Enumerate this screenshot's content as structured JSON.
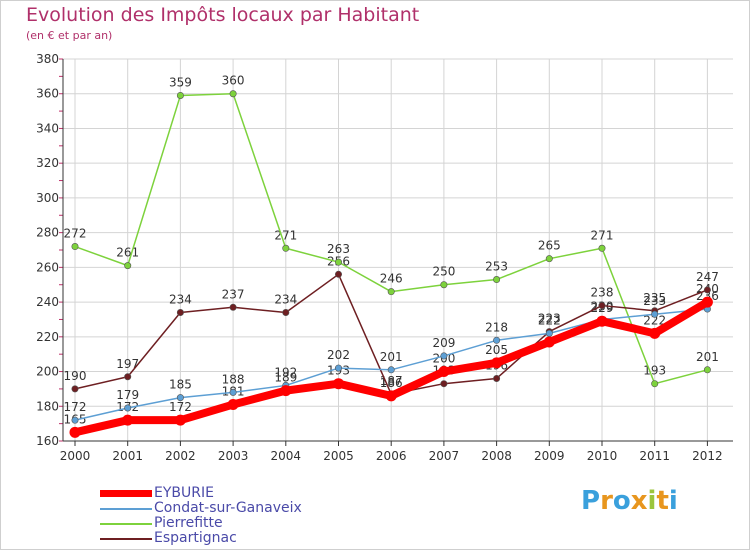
{
  "chart_data": {
    "type": "line",
    "title": "Evolution des Impôts locaux par Habitant",
    "subtitle": "(en € et par an)",
    "xlabel": "",
    "ylabel": "",
    "categories": [
      "2000",
      "2001",
      "2002",
      "2003",
      "2004",
      "2005",
      "2006",
      "2007",
      "2008",
      "2009",
      "2010",
      "2011",
      "2012"
    ],
    "ylim": [
      160,
      380
    ],
    "yticks": [
      160,
      180,
      200,
      220,
      240,
      260,
      280,
      300,
      320,
      340,
      360,
      380
    ],
    "grid": true,
    "series": [
      {
        "name": "EYBURIE",
        "color": "#ff0000",
        "values": [
          165,
          172,
          172,
          181,
          189,
          193,
          186,
          200,
          205,
          217,
          229,
          222,
          240
        ],
        "labels": [
          "165",
          "172",
          "172",
          "181",
          "189",
          "193",
          "186",
          "200",
          "205",
          "",
          "229",
          "222",
          "240"
        ]
      },
      {
        "name": "Condat-sur-Ganaveix",
        "color": "#5d9fd4",
        "values": [
          172,
          179,
          185,
          188,
          192,
          202,
          201,
          209,
          218,
          222,
          230,
          233,
          236
        ],
        "labels": [
          "172",
          "179",
          "185",
          "188",
          "192",
          "202",
          "201",
          "209",
          "218",
          "222",
          "230",
          "233",
          "236"
        ]
      },
      {
        "name": "Pierrefitte",
        "color": "#7dd23c",
        "values": [
          272,
          261,
          359,
          360,
          271,
          263,
          246,
          250,
          253,
          265,
          271,
          193,
          201
        ],
        "labels": [
          "272",
          "261",
          "359",
          "360",
          "271",
          "263",
          "246",
          "250",
          "253",
          "265",
          "271",
          "193",
          "201"
        ]
      },
      {
        "name": "Espartignac",
        "color": "#6e1f22",
        "values": [
          190,
          197,
          234,
          237,
          234,
          256,
          187,
          193,
          196,
          223,
          238,
          235,
          247
        ],
        "labels": [
          "190",
          "197",
          "234",
          "237",
          "234",
          "256",
          "187",
          "193",
          "196",
          "223",
          "238",
          "235",
          "247"
        ]
      }
    ]
  },
  "legend": {
    "items": [
      {
        "name": "EYBURIE"
      },
      {
        "name": "Condat-sur-Ganaveix"
      },
      {
        "name": "Pierrefitte"
      },
      {
        "name": "Espartignac"
      }
    ]
  },
  "logo": {
    "letters": [
      "P",
      "r",
      "o",
      "x",
      "i",
      "t",
      "i"
    ],
    "colors": [
      "#3aa0dc",
      "#e8961e",
      "#3aa0dc",
      "#e8961e",
      "#9bc53d",
      "#e8961e",
      "#3aa0dc"
    ]
  }
}
